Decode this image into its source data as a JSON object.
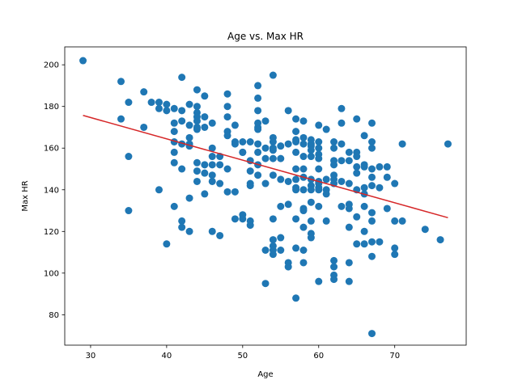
{
  "chart_data": {
    "type": "scatter",
    "title": "Age vs. Max HR",
    "xlabel": "Age",
    "ylabel": "Max HR",
    "xlim": [
      26.6,
      79.4
    ],
    "ylim": [
      65.4,
      208.6
    ],
    "xticks": [
      30,
      40,
      50,
      60,
      70
    ],
    "yticks": [
      80,
      100,
      120,
      140,
      160,
      180,
      200
    ],
    "grid": false,
    "point_color": "#1f77b4",
    "fit_color": "#d62728",
    "fit_line": {
      "x": [
        29,
        77
      ],
      "y": [
        175.7,
        126.6
      ]
    },
    "series": [
      {
        "points": [
          [
            29,
            202
          ],
          [
            34,
            192
          ],
          [
            34,
            174
          ],
          [
            35,
            182
          ],
          [
            35,
            156
          ],
          [
            35,
            130
          ],
          [
            37,
            187
          ],
          [
            37,
            170
          ],
          [
            38,
            182
          ],
          [
            39,
            182
          ],
          [
            39,
            179
          ],
          [
            39,
            140
          ],
          [
            40,
            181
          ],
          [
            40,
            178
          ],
          [
            40,
            114
          ],
          [
            41,
            179
          ],
          [
            41,
            172
          ],
          [
            41,
            168
          ],
          [
            41,
            163
          ],
          [
            41,
            158
          ],
          [
            41,
            153
          ],
          [
            41,
            132
          ],
          [
            42,
            194
          ],
          [
            42,
            178
          ],
          [
            42,
            173
          ],
          [
            42,
            162
          ],
          [
            42,
            150
          ],
          [
            42,
            125
          ],
          [
            42,
            122
          ],
          [
            43,
            181
          ],
          [
            43,
            171
          ],
          [
            43,
            165
          ],
          [
            43,
            162
          ],
          [
            43,
            161
          ],
          [
            43,
            136
          ],
          [
            43,
            120
          ],
          [
            44,
            188
          ],
          [
            44,
            180
          ],
          [
            44,
            177
          ],
          [
            44,
            175
          ],
          [
            44,
            173
          ],
          [
            44,
            170
          ],
          [
            44,
            169
          ],
          [
            44,
            153
          ],
          [
            44,
            149
          ],
          [
            44,
            144
          ],
          [
            45,
            185
          ],
          [
            45,
            175
          ],
          [
            45,
            170
          ],
          [
            45,
            152
          ],
          [
            45,
            148
          ],
          [
            45,
            138
          ],
          [
            46,
            172
          ],
          [
            46,
            160
          ],
          [
            46,
            156
          ],
          [
            46,
            152
          ],
          [
            46,
            147
          ],
          [
            46,
            144
          ],
          [
            46,
            120
          ],
          [
            47,
            156
          ],
          [
            47,
            152
          ],
          [
            47,
            143
          ],
          [
            47,
            118
          ],
          [
            48,
            186
          ],
          [
            48,
            180
          ],
          [
            48,
            175
          ],
          [
            48,
            168
          ],
          [
            48,
            166
          ],
          [
            48,
            150
          ],
          [
            48,
            139
          ],
          [
            49,
            171
          ],
          [
            49,
            163
          ],
          [
            49,
            162
          ],
          [
            49,
            139
          ],
          [
            49,
            126
          ],
          [
            50,
            163
          ],
          [
            50,
            158
          ],
          [
            50,
            158
          ],
          [
            50,
            128
          ],
          [
            50,
            126
          ],
          [
            51,
            163
          ],
          [
            51,
            154
          ],
          [
            51,
            149
          ],
          [
            51,
            143
          ],
          [
            51,
            142
          ],
          [
            51,
            125
          ],
          [
            51,
            123
          ],
          [
            52,
            190
          ],
          [
            52,
            184
          ],
          [
            52,
            178
          ],
          [
            52,
            172
          ],
          [
            52,
            170
          ],
          [
            52,
            162
          ],
          [
            52,
            158
          ],
          [
            52,
            152
          ],
          [
            52,
            147
          ],
          [
            52,
            169
          ],
          [
            53,
            173
          ],
          [
            53,
            160
          ],
          [
            53,
            155
          ],
          [
            53,
            143
          ],
          [
            53,
            111
          ],
          [
            53,
            95
          ],
          [
            54,
            195
          ],
          [
            54,
            165
          ],
          [
            54,
            163
          ],
          [
            54,
            160
          ],
          [
            54,
            159
          ],
          [
            54,
            155
          ],
          [
            54,
            147
          ],
          [
            54,
            126
          ],
          [
            54,
            116
          ],
          [
            54,
            113
          ],
          [
            54,
            109
          ],
          [
            54,
            111
          ],
          [
            55,
            161
          ],
          [
            55,
            155
          ],
          [
            55,
            145
          ],
          [
            55,
            132
          ],
          [
            55,
            117
          ],
          [
            55,
            111
          ],
          [
            56,
            178
          ],
          [
            56,
            162
          ],
          [
            56,
            144
          ],
          [
            56,
            133
          ],
          [
            56,
            105
          ],
          [
            56,
            103
          ],
          [
            57,
            174
          ],
          [
            57,
            168
          ],
          [
            57,
            164
          ],
          [
            57,
            163
          ],
          [
            57,
            158
          ],
          [
            57,
            150
          ],
          [
            57,
            145
          ],
          [
            57,
            141
          ],
          [
            57,
            140
          ],
          [
            57,
            126
          ],
          [
            57,
            112
          ],
          [
            57,
            88
          ],
          [
            58,
            173
          ],
          [
            58,
            165
          ],
          [
            58,
            162
          ],
          [
            58,
            156
          ],
          [
            58,
            150
          ],
          [
            58,
            146
          ],
          [
            58,
            140
          ],
          [
            58,
            131
          ],
          [
            58,
            130
          ],
          [
            58,
            122
          ],
          [
            58,
            111
          ],
          [
            58,
            105
          ],
          [
            59,
            164
          ],
          [
            59,
            162
          ],
          [
            59,
            161
          ],
          [
            59,
            159
          ],
          [
            59,
            156
          ],
          [
            59,
            145
          ],
          [
            59,
            142
          ],
          [
            59,
            140
          ],
          [
            59,
            134
          ],
          [
            59,
            125
          ],
          [
            59,
            119
          ],
          [
            59,
            117
          ],
          [
            60,
            171
          ],
          [
            60,
            163
          ],
          [
            60,
            160
          ],
          [
            60,
            157
          ],
          [
            60,
            155
          ],
          [
            60,
            150
          ],
          [
            60,
            144
          ],
          [
            60,
            143
          ],
          [
            60,
            141
          ],
          [
            60,
            140
          ],
          [
            60,
            132
          ],
          [
            60,
            96
          ],
          [
            61,
            169
          ],
          [
            61,
            145
          ],
          [
            61,
            140
          ],
          [
            61,
            138
          ],
          [
            61,
            125
          ],
          [
            62,
            163
          ],
          [
            62,
            160
          ],
          [
            62,
            154
          ],
          [
            62,
            152
          ],
          [
            62,
            147
          ],
          [
            62,
            145
          ],
          [
            62,
            143
          ],
          [
            62,
            106
          ],
          [
            62,
            103
          ],
          [
            62,
            99
          ],
          [
            62,
            97
          ],
          [
            63,
            179
          ],
          [
            63,
            172
          ],
          [
            63,
            154
          ],
          [
            63,
            144
          ],
          [
            63,
            132
          ],
          [
            63,
            162
          ],
          [
            64,
            158
          ],
          [
            64,
            154
          ],
          [
            64,
            143
          ],
          [
            64,
            133
          ],
          [
            64,
            131
          ],
          [
            64,
            122
          ],
          [
            64,
            105
          ],
          [
            64,
            96
          ],
          [
            65,
            174
          ],
          [
            65,
            158
          ],
          [
            65,
            156
          ],
          [
            65,
            151
          ],
          [
            65,
            148
          ],
          [
            65,
            140
          ],
          [
            65,
            127
          ],
          [
            65,
            114
          ],
          [
            66,
            166
          ],
          [
            66,
            152
          ],
          [
            66,
            151
          ],
          [
            66,
            141
          ],
          [
            66,
            138
          ],
          [
            66,
            120
          ],
          [
            66,
            114
          ],
          [
            66,
            132
          ],
          [
            67,
            172
          ],
          [
            67,
            163
          ],
          [
            67,
            160
          ],
          [
            67,
            150
          ],
          [
            67,
            146
          ],
          [
            67,
            142
          ],
          [
            67,
            129
          ],
          [
            67,
            125
          ],
          [
            67,
            115
          ],
          [
            67,
            108
          ],
          [
            67,
            71
          ],
          [
            68,
            151
          ],
          [
            68,
            141
          ],
          [
            68,
            115
          ],
          [
            69,
            151
          ],
          [
            69,
            146
          ],
          [
            69,
            131
          ],
          [
            70,
            143
          ],
          [
            70,
            125
          ],
          [
            70,
            112
          ],
          [
            70,
            109
          ],
          [
            71,
            162
          ],
          [
            71,
            125
          ],
          [
            74,
            121
          ],
          [
            76,
            116
          ],
          [
            77,
            162
          ]
        ]
      }
    ]
  }
}
